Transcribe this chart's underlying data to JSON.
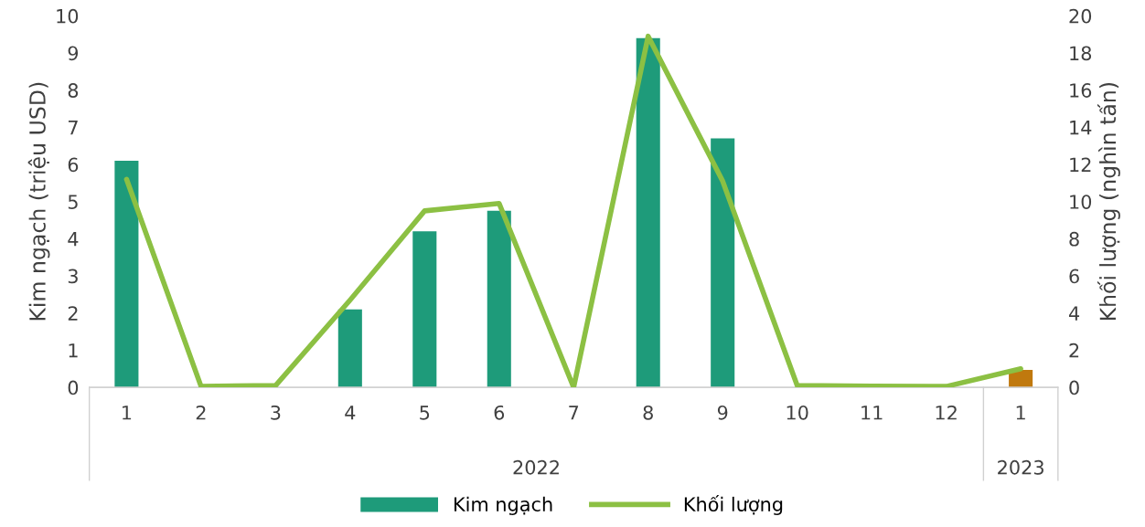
{
  "chart_data": {
    "type": "bar",
    "categories": [
      "1",
      "2",
      "3",
      "4",
      "5",
      "6",
      "7",
      "8",
      "9",
      "10",
      "11",
      "12",
      "1"
    ],
    "series": [
      {
        "name": "Kim ngạch",
        "color": "#1e9b7a",
        "colors": [
          "#1e9b7a",
          "#1e9b7a",
          "#1e9b7a",
          "#1e9b7a",
          "#1e9b7a",
          "#1e9b7a",
          "#1e9b7a",
          "#1e9b7a",
          "#1e9b7a",
          "#1e9b7a",
          "#1e9b7a",
          "#1e9b7a",
          "#c0790e"
        ],
        "values": [
          6.1,
          null,
          null,
          2.1,
          4.2,
          4.75,
          null,
          9.4,
          6.7,
          null,
          null,
          null,
          0.47
        ]
      },
      {
        "name": "Khối lượng",
        "type": "line",
        "axis": "y2",
        "color": "#8cc043",
        "values": [
          11.2,
          0.05,
          0.1,
          4.7,
          9.5,
          9.9,
          0,
          18.9,
          11.1,
          0.1,
          0.07,
          0.05,
          1.0
        ]
      }
    ],
    "ylabel": "Kim ngạch (triệu USD)",
    "y2label": "Khối lượng (nghìn tấn)",
    "ylim": [
      0,
      10
    ],
    "yticks": [
      0,
      1,
      2,
      3,
      4,
      5,
      6,
      7,
      8,
      9,
      10
    ],
    "y2lim": [
      0,
      20
    ],
    "y2ticks": [
      0,
      2,
      4,
      6,
      8,
      10,
      12,
      14,
      16,
      18,
      20
    ],
    "annotations": [
      "2022",
      "2023"
    ],
    "legend": "bottom",
    "grid": false
  }
}
